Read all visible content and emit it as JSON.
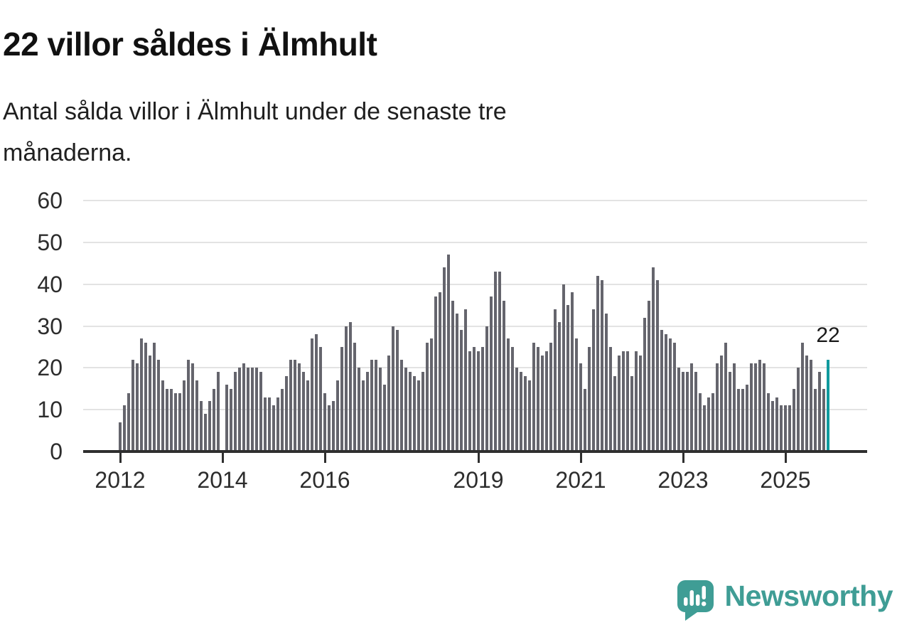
{
  "header": {
    "title": "22 villor såldes i Älmhult",
    "subtitle_lines": [
      "Antal sålda villor i Älmhult under de senaste tre",
      "månaderna."
    ]
  },
  "chart": {
    "y_ticks": [
      60,
      50,
      40,
      30,
      20,
      10,
      0
    ],
    "x_ticks": [
      {
        "label": "2012",
        "month_index": 0
      },
      {
        "label": "2014",
        "month_index": 24
      },
      {
        "label": "2016",
        "month_index": 48
      },
      {
        "label": "2019",
        "month_index": 84
      },
      {
        "label": "2021",
        "month_index": 108
      },
      {
        "label": "2023",
        "month_index": 132
      },
      {
        "label": "2025",
        "month_index": 156
      }
    ],
    "annotation": {
      "text": "22"
    },
    "colors": {
      "bar": "#65656d",
      "highlight": "#119a9e",
      "gridline": "#e3e3e3",
      "axis": "#2f2f2f",
      "text": "#2d2d2d"
    }
  },
  "chart_data": {
    "type": "bar",
    "title": "22 villor såldes i Älmhult",
    "xlabel": "",
    "ylabel": "",
    "ylim": [
      0,
      60
    ],
    "grid": true,
    "legend": false,
    "x_start": "2012-01",
    "x_step_months": 1,
    "x_tick_labels": [
      "2012",
      "2014",
      "2016",
      "2019",
      "2021",
      "2023",
      "2025"
    ],
    "highlight_last_bar": true,
    "highlight_value": 22,
    "values": [
      7,
      11,
      14,
      22,
      21,
      27,
      26,
      23,
      26,
      22,
      17,
      15,
      15,
      14,
      14,
      17,
      22,
      21,
      17,
      12,
      9,
      12,
      15,
      19,
      0,
      16,
      15,
      19,
      20,
      21,
      20,
      20,
      20,
      19,
      13,
      13,
      11,
      13,
      15,
      18,
      22,
      22,
      21,
      19,
      17,
      27,
      28,
      25,
      14,
      11,
      12,
      17,
      25,
      30,
      31,
      26,
      20,
      17,
      19,
      22,
      22,
      20,
      16,
      23,
      30,
      29,
      22,
      20,
      19,
      18,
      17,
      19,
      26,
      27,
      37,
      38,
      44,
      47,
      36,
      33,
      29,
      34,
      24,
      25,
      24,
      25,
      30,
      37,
      43,
      43,
      36,
      27,
      25,
      20,
      19,
      18,
      17,
      26,
      25,
      23,
      24,
      26,
      34,
      31,
      40,
      35,
      38,
      27,
      21,
      15,
      25,
      34,
      42,
      41,
      33,
      25,
      18,
      23,
      24,
      24,
      18,
      24,
      23,
      32,
      36,
      44,
      41,
      29,
      28,
      27,
      26,
      20,
      19,
      19,
      21,
      19,
      14,
      11,
      13,
      14,
      21,
      23,
      26,
      19,
      21,
      15,
      15,
      16,
      21,
      21,
      22,
      21,
      14,
      12,
      13,
      11,
      11,
      11,
      15,
      20,
      26,
      23,
      22,
      15,
      19,
      15,
      22
    ]
  },
  "logo": {
    "text": "Newsworthy",
    "icon": "newsworthy-speech-bubble-bar-chart-icon",
    "color": "#3f9d95"
  }
}
